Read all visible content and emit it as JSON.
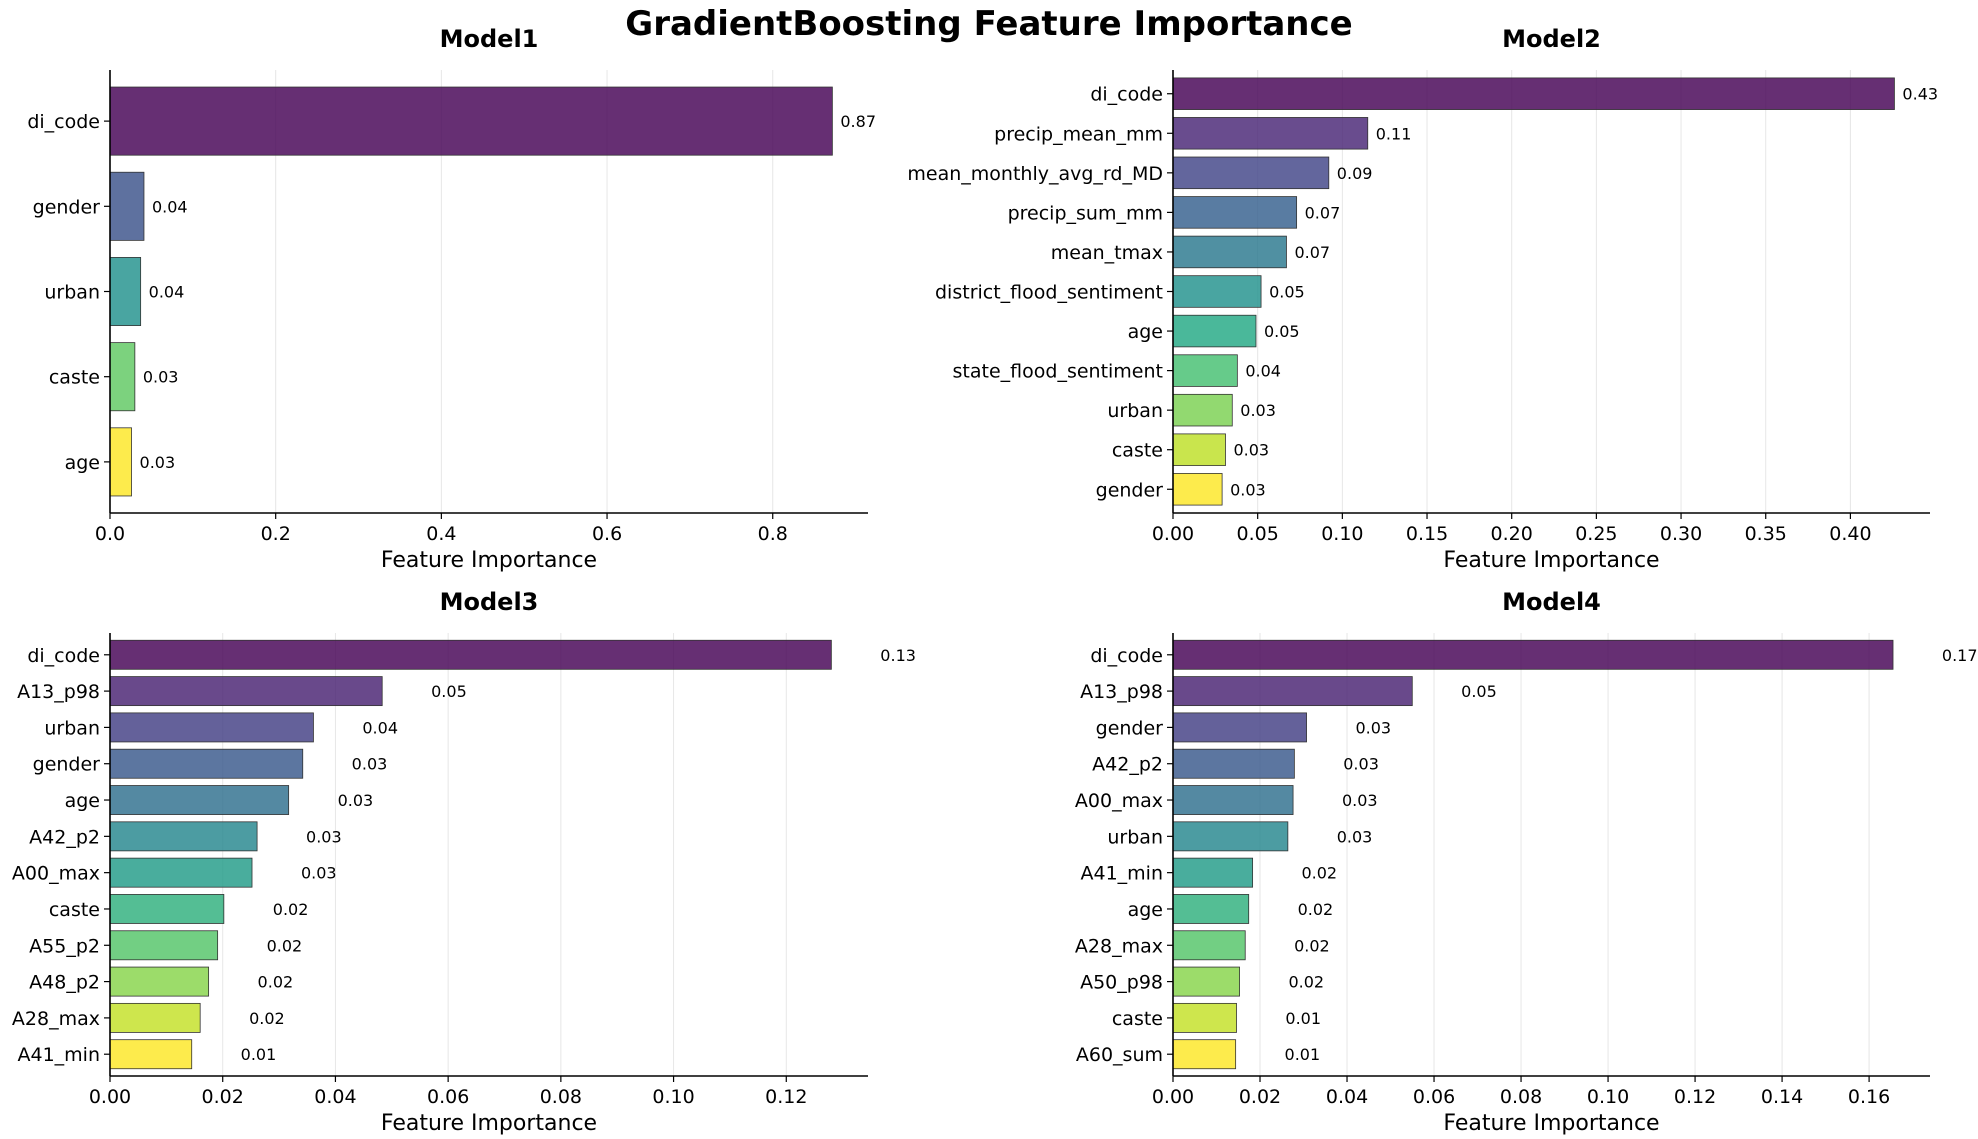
{
  "title": "GradientBoosting Feature Importance",
  "chart_data": [
    {
      "type": "bar",
      "orientation": "horizontal",
      "title": "Model1",
      "xlabel": "Feature Importance",
      "xlim": [
        0,
        0.915
      ],
      "xticks": [
        0,
        0.2,
        0.4,
        0.6,
        0.8
      ],
      "xtick_labels": [
        "0.0",
        "0.2",
        "0.4",
        "0.6",
        "0.8"
      ],
      "categories": [
        "di_code",
        "gender",
        "urban",
        "caste",
        "age"
      ],
      "values": [
        0.872,
        0.041,
        0.037,
        0.03,
        0.026
      ],
      "labels": [
        "0.87",
        "0.04",
        "0.04",
        "0.03",
        "0.03"
      ],
      "grid": "x"
    },
    {
      "type": "bar",
      "orientation": "horizontal",
      "title": "Model2",
      "xlabel": "Feature Importance",
      "xlim": [
        0,
        0.447
      ],
      "xticks": [
        0,
        0.05,
        0.1,
        0.15,
        0.2,
        0.25,
        0.3,
        0.35,
        0.4
      ],
      "xtick_labels": [
        "0.00",
        "0.05",
        "0.10",
        "0.15",
        "0.20",
        "0.25",
        "0.30",
        "0.35",
        "0.40"
      ],
      "categories": [
        "di_code",
        "precip_mean_mm",
        "mean_monthly_avg_rd_MD",
        "precip_sum_mm",
        "mean_tmax",
        "district_flood_sentiment",
        "age",
        "state_flood_sentiment",
        "urban",
        "caste",
        "gender"
      ],
      "values": [
        0.426,
        0.115,
        0.092,
        0.073,
        0.067,
        0.052,
        0.049,
        0.038,
        0.035,
        0.031,
        0.029
      ],
      "labels": [
        "0.43",
        "0.11",
        "0.09",
        "0.07",
        "0.07",
        "0.05",
        "0.05",
        "0.04",
        "0.03",
        "0.03",
        "0.03"
      ],
      "grid": "x"
    },
    {
      "type": "bar",
      "orientation": "horizontal",
      "title": "Model3",
      "xlabel": "Feature Importance",
      "xlim": [
        0,
        0.1345
      ],
      "xticks": [
        0,
        0.02,
        0.04,
        0.06,
        0.08,
        0.1,
        0.12
      ],
      "xtick_labels": [
        "0.00",
        "0.02",
        "0.04",
        "0.06",
        "0.08",
        "0.10",
        "0.12"
      ],
      "categories": [
        "di_code",
        "A13_p98",
        "urban",
        "gender",
        "age",
        "A42_p2",
        "A00_max",
        "caste",
        "A55_p2",
        "A48_p2",
        "A28_max",
        "A41_min"
      ],
      "values": [
        0.128,
        0.0483,
        0.0361,
        0.0342,
        0.0317,
        0.0261,
        0.0252,
        0.0202,
        0.0191,
        0.0175,
        0.016,
        0.0145
      ],
      "labels": [
        "0.13",
        "0.05",
        "0.04",
        "0.03",
        "0.03",
        "0.03",
        "0.03",
        "0.02",
        "0.02",
        "0.02",
        "0.02",
        "0.01"
      ],
      "grid": "x"
    },
    {
      "type": "bar",
      "orientation": "horizontal",
      "title": "Model4",
      "xlabel": "Feature Importance",
      "xlim": [
        0,
        0.174
      ],
      "xticks": [
        0,
        0.02,
        0.04,
        0.06,
        0.08,
        0.1,
        0.12,
        0.14,
        0.16
      ],
      "xtick_labels": [
        "0.00",
        "0.02",
        "0.04",
        "0.06",
        "0.08",
        "0.10",
        "0.12",
        "0.14",
        "0.16"
      ],
      "categories": [
        "di_code",
        "A13_p98",
        "gender",
        "A42_p2",
        "A00_max",
        "urban",
        "A41_min",
        "age",
        "A28_max",
        "A50_p98",
        "caste",
        "A60_sum"
      ],
      "values": [
        0.1655,
        0.055,
        0.0307,
        0.0279,
        0.0276,
        0.0264,
        0.0183,
        0.0174,
        0.0166,
        0.0153,
        0.0146,
        0.0144
      ],
      "labels": [
        "0.17",
        "0.05",
        "0.03",
        "0.03",
        "0.03",
        "0.03",
        "0.02",
        "0.02",
        "0.02",
        "0.02",
        "0.01",
        "0.01"
      ],
      "grid": "x"
    }
  ],
  "colormap": "viridis",
  "colors": {
    "axis": "#000000",
    "grid": "#e6e6e6",
    "bar_edge": "#333333"
  }
}
